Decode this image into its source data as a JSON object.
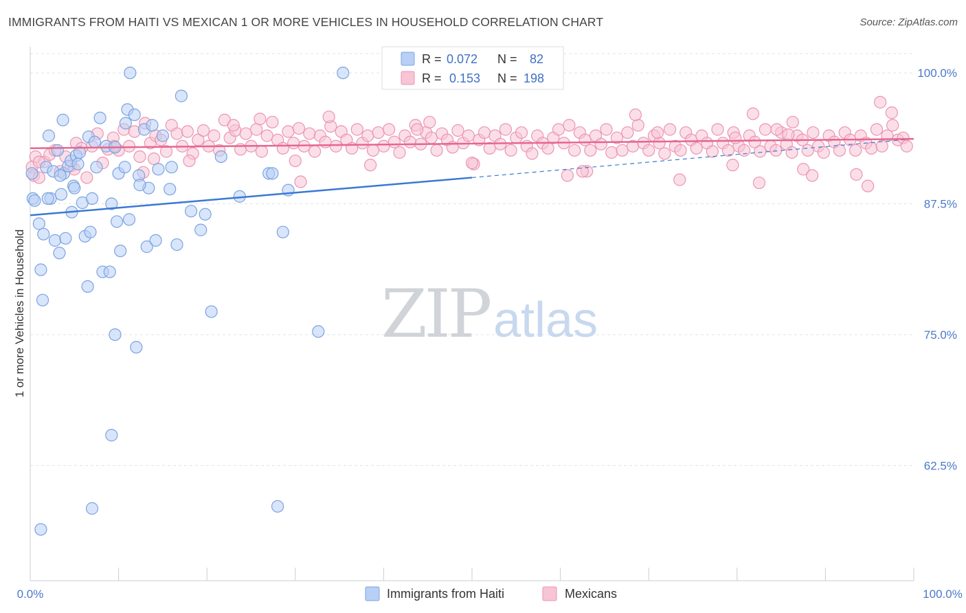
{
  "title": "IMMIGRANTS FROM HAITI VS MEXICAN 1 OR MORE VEHICLES IN HOUSEHOLD CORRELATION CHART",
  "source": "Source: ZipAtlas.com",
  "watermark": {
    "zip": "ZIP",
    "atlas": "atlas"
  },
  "colors": {
    "haiti_fill": "#b8d0f5",
    "haiti_stroke": "#7ba3e0",
    "haiti_line": "#3a78d4",
    "mexican_fill": "#f7c5d5",
    "mexican_stroke": "#ec94b0",
    "mexican_line": "#e6668e",
    "tick_text": "#4a78c8"
  },
  "legend": {
    "r_label": "R =",
    "n_label": "N =",
    "haiti": {
      "r": "0.072",
      "n": "82"
    },
    "mexican": {
      "r": "0.153",
      "n": "198"
    }
  },
  "chart_data": {
    "type": "scatter",
    "xlabel": "",
    "ylabel": "1 or more Vehicles in Household",
    "xlim": [
      0,
      100
    ],
    "ylim": [
      51.5,
      102.5
    ],
    "x_tick_labels": [
      "0.0%",
      "100.0%"
    ],
    "y_ticks": [
      100,
      87.5,
      75,
      62.5
    ],
    "y_tick_labels": [
      "100.0%",
      "87.5%",
      "75.0%",
      "62.5%"
    ],
    "grid": true,
    "legend_position": "top-center",
    "series": [
      {
        "name": "Immigrants from Haiti",
        "trend": {
          "x0": 0,
          "y0": 86.4,
          "x1": 50,
          "y1": 90.0,
          "dashed_to_x": 100,
          "dashed_to_y": 93.7
        },
        "points": [
          [
            0.2,
            90.4
          ],
          [
            0.3,
            88.0
          ],
          [
            0.5,
            87.8
          ],
          [
            1.0,
            85.6
          ],
          [
            1.2,
            81.2
          ],
          [
            1.5,
            84.6
          ],
          [
            1.8,
            91.0
          ],
          [
            2.1,
            94.0
          ],
          [
            2.3,
            88.0
          ],
          [
            2.6,
            90.6
          ],
          [
            2.8,
            84.0
          ],
          [
            3.1,
            92.6
          ],
          [
            3.3,
            82.8
          ],
          [
            3.5,
            88.4
          ],
          [
            3.8,
            90.4
          ],
          [
            4.0,
            84.2
          ],
          [
            4.3,
            91.1
          ],
          [
            4.6,
            91.6
          ],
          [
            4.9,
            89.2
          ],
          [
            5.2,
            92.1
          ],
          [
            5.4,
            91.3
          ],
          [
            5.9,
            87.6
          ],
          [
            6.2,
            84.4
          ],
          [
            6.6,
            93.9
          ],
          [
            7.0,
            88.0
          ],
          [
            7.5,
            91.0
          ],
          [
            7.9,
            95.7
          ],
          [
            8.6,
            93.0
          ],
          [
            9.2,
            87.5
          ],
          [
            9.6,
            92.9
          ],
          [
            10.0,
            90.4
          ],
          [
            10.7,
            91.0
          ],
          [
            11.0,
            96.5
          ],
          [
            11.3,
            100.0
          ],
          [
            11.8,
            96.0
          ],
          [
            12.3,
            90.2
          ],
          [
            12.9,
            94.6
          ],
          [
            13.4,
            89.0
          ],
          [
            13.8,
            95.0
          ],
          [
            14.5,
            90.8
          ],
          [
            15.0,
            94.0
          ],
          [
            16.0,
            91.0
          ],
          [
            16.6,
            83.6
          ],
          [
            17.1,
            97.8
          ],
          [
            18.2,
            86.8
          ],
          [
            19.3,
            85.0
          ],
          [
            19.8,
            86.5
          ],
          [
            20.5,
            77.2
          ],
          [
            21.6,
            92.0
          ],
          [
            23.7,
            88.2
          ],
          [
            27.0,
            90.4
          ],
          [
            27.4,
            90.4
          ],
          [
            28.0,
            58.6
          ],
          [
            28.6,
            84.8
          ],
          [
            29.2,
            88.8
          ],
          [
            32.6,
            75.3
          ],
          [
            35.4,
            100.0
          ],
          [
            10.8,
            95.2
          ],
          [
            7.3,
            93.4
          ],
          [
            3.7,
            95.5
          ],
          [
            5.0,
            89.0
          ],
          [
            8.2,
            81.0
          ],
          [
            9.0,
            81.0
          ],
          [
            6.5,
            79.6
          ],
          [
            1.4,
            78.3
          ],
          [
            9.6,
            75.0
          ],
          [
            12.0,
            73.8
          ],
          [
            9.2,
            65.4
          ],
          [
            7.0,
            58.4
          ],
          [
            1.2,
            56.4
          ],
          [
            12.4,
            89.3
          ],
          [
            13.2,
            83.4
          ],
          [
            14.2,
            84.0
          ],
          [
            9.8,
            85.8
          ],
          [
            11.2,
            86.0
          ],
          [
            10.2,
            83.0
          ],
          [
            4.7,
            86.7
          ],
          [
            3.4,
            90.2
          ],
          [
            2.0,
            88.0
          ],
          [
            5.6,
            92.4
          ],
          [
            15.8,
            88.9
          ],
          [
            6.8,
            84.8
          ]
        ]
      },
      {
        "name": "Mexicans",
        "trend": {
          "x0": 0,
          "y0": 92.8,
          "x1": 100,
          "y1": 93.7
        },
        "points": [
          [
            0.2,
            91.0
          ],
          [
            0.4,
            90.2
          ],
          [
            0.6,
            92.0
          ],
          [
            1.0,
            90.0
          ],
          [
            1.6,
            91.5
          ],
          [
            2.2,
            92.2
          ],
          [
            2.8,
            92.6
          ],
          [
            3.4,
            90.6
          ],
          [
            4.0,
            92.0
          ],
          [
            4.6,
            91.1
          ],
          [
            5.2,
            93.3
          ],
          [
            5.8,
            92.8
          ],
          [
            6.4,
            90.0
          ],
          [
            7.0,
            93.0
          ],
          [
            7.6,
            94.2
          ],
          [
            8.2,
            91.4
          ],
          [
            8.8,
            92.7
          ],
          [
            9.4,
            93.8
          ],
          [
            10.0,
            92.6
          ],
          [
            10.6,
            94.6
          ],
          [
            11.2,
            93.0
          ],
          [
            11.8,
            94.4
          ],
          [
            12.4,
            92.0
          ],
          [
            13.0,
            95.2
          ],
          [
            13.6,
            93.3
          ],
          [
            14.2,
            94.0
          ],
          [
            14.8,
            93.6
          ],
          [
            15.4,
            92.5
          ],
          [
            16.0,
            95.0
          ],
          [
            16.6,
            94.2
          ],
          [
            17.2,
            93.0
          ],
          [
            17.8,
            94.4
          ],
          [
            18.4,
            92.3
          ],
          [
            19.0,
            93.6
          ],
          [
            19.6,
            94.5
          ],
          [
            20.2,
            93.0
          ],
          [
            20.8,
            94.0
          ],
          [
            21.4,
            92.6
          ],
          [
            22.0,
            95.5
          ],
          [
            22.6,
            93.8
          ],
          [
            23.2,
            94.5
          ],
          [
            23.8,
            92.7
          ],
          [
            24.4,
            94.2
          ],
          [
            25.0,
            93.0
          ],
          [
            25.6,
            94.6
          ],
          [
            26.2,
            92.5
          ],
          [
            26.8,
            94.0
          ],
          [
            27.4,
            95.3
          ],
          [
            28.0,
            93.6
          ],
          [
            28.6,
            92.8
          ],
          [
            29.2,
            94.4
          ],
          [
            29.8,
            93.3
          ],
          [
            30.4,
            94.7
          ],
          [
            31.0,
            93.0
          ],
          [
            31.6,
            94.2
          ],
          [
            32.2,
            92.5
          ],
          [
            32.8,
            94.0
          ],
          [
            33.4,
            93.4
          ],
          [
            34.0,
            94.9
          ],
          [
            34.6,
            93.0
          ],
          [
            35.2,
            94.4
          ],
          [
            35.8,
            93.6
          ],
          [
            36.4,
            92.8
          ],
          [
            37.0,
            94.6
          ],
          [
            37.6,
            93.3
          ],
          [
            38.2,
            94.0
          ],
          [
            38.8,
            92.6
          ],
          [
            39.4,
            94.3
          ],
          [
            40.0,
            93.0
          ],
          [
            40.6,
            94.6
          ],
          [
            41.2,
            93.4
          ],
          [
            41.8,
            92.4
          ],
          [
            42.4,
            94.0
          ],
          [
            43.0,
            93.4
          ],
          [
            43.6,
            95.0
          ],
          [
            44.2,
            93.2
          ],
          [
            44.8,
            94.3
          ],
          [
            45.4,
            93.8
          ],
          [
            46.0,
            92.6
          ],
          [
            46.6,
            94.2
          ],
          [
            47.2,
            93.6
          ],
          [
            47.8,
            92.9
          ],
          [
            48.4,
            94.5
          ],
          [
            49.0,
            93.3
          ],
          [
            49.6,
            94.0
          ],
          [
            50.2,
            91.3
          ],
          [
            50.8,
            93.6
          ],
          [
            51.4,
            94.3
          ],
          [
            52.0,
            92.8
          ],
          [
            52.6,
            94.0
          ],
          [
            53.2,
            93.2
          ],
          [
            53.8,
            94.6
          ],
          [
            54.4,
            92.6
          ],
          [
            55.0,
            93.8
          ],
          [
            55.6,
            94.3
          ],
          [
            56.2,
            93.0
          ],
          [
            56.8,
            92.3
          ],
          [
            57.4,
            94.0
          ],
          [
            58.0,
            93.3
          ],
          [
            58.6,
            92.8
          ],
          [
            59.2,
            93.8
          ],
          [
            59.8,
            94.6
          ],
          [
            60.4,
            93.3
          ],
          [
            61.0,
            95.0
          ],
          [
            61.6,
            92.6
          ],
          [
            62.2,
            94.3
          ],
          [
            62.8,
            93.6
          ],
          [
            63.4,
            92.6
          ],
          [
            64.0,
            94.0
          ],
          [
            64.6,
            93.2
          ],
          [
            65.2,
            94.6
          ],
          [
            65.8,
            92.4
          ],
          [
            66.4,
            93.8
          ],
          [
            67.0,
            92.6
          ],
          [
            67.6,
            94.3
          ],
          [
            68.2,
            93.0
          ],
          [
            68.8,
            95.0
          ],
          [
            69.4,
            93.3
          ],
          [
            70.0,
            92.6
          ],
          [
            70.6,
            94.0
          ],
          [
            71.2,
            93.3
          ],
          [
            71.8,
            92.3
          ],
          [
            72.4,
            94.6
          ],
          [
            73.0,
            93.0
          ],
          [
            73.6,
            92.6
          ],
          [
            74.2,
            94.3
          ],
          [
            74.8,
            93.6
          ],
          [
            75.4,
            92.8
          ],
          [
            76.0,
            94.0
          ],
          [
            76.6,
            93.3
          ],
          [
            77.2,
            92.5
          ],
          [
            77.8,
            94.6
          ],
          [
            78.4,
            93.3
          ],
          [
            79.0,
            92.6
          ],
          [
            79.6,
            94.3
          ],
          [
            80.2,
            93.0
          ],
          [
            80.8,
            92.6
          ],
          [
            81.4,
            94.0
          ],
          [
            82.0,
            93.4
          ],
          [
            82.6,
            92.5
          ],
          [
            83.2,
            94.6
          ],
          [
            83.8,
            93.0
          ],
          [
            84.4,
            92.6
          ],
          [
            85.0,
            94.3
          ],
          [
            85.6,
            93.2
          ],
          [
            86.2,
            92.4
          ],
          [
            86.8,
            94.0
          ],
          [
            87.4,
            93.6
          ],
          [
            88.0,
            92.6
          ],
          [
            88.6,
            94.3
          ],
          [
            89.2,
            93.0
          ],
          [
            89.8,
            92.4
          ],
          [
            90.4,
            94.0
          ],
          [
            91.0,
            93.4
          ],
          [
            91.6,
            92.6
          ],
          [
            92.2,
            94.3
          ],
          [
            92.8,
            93.6
          ],
          [
            93.4,
            92.6
          ],
          [
            94.0,
            94.0
          ],
          [
            94.6,
            93.3
          ],
          [
            95.2,
            92.8
          ],
          [
            95.8,
            94.6
          ],
          [
            96.4,
            93.0
          ],
          [
            97.0,
            94.0
          ],
          [
            97.6,
            95.0
          ],
          [
            98.2,
            93.6
          ],
          [
            98.8,
            93.8
          ],
          [
            99.2,
            93.0
          ],
          [
            1.0,
            91.5
          ],
          [
            5.0,
            90.8
          ],
          [
            9.5,
            93.0
          ],
          [
            14.0,
            91.8
          ],
          [
            18.0,
            91.6
          ],
          [
            30.0,
            91.6
          ],
          [
            30.6,
            89.6
          ],
          [
            38.5,
            91.2
          ],
          [
            50.0,
            91.4
          ],
          [
            63.0,
            90.6
          ],
          [
            73.5,
            89.8
          ],
          [
            79.5,
            91.2
          ],
          [
            82.5,
            89.5
          ],
          [
            87.5,
            90.8
          ],
          [
            88.5,
            90.2
          ],
          [
            93.5,
            90.3
          ],
          [
            94.8,
            89.2
          ],
          [
            96.2,
            97.2
          ],
          [
            97.5,
            96.2
          ],
          [
            81.8,
            96.1
          ],
          [
            86.3,
            95.3
          ],
          [
            79.8,
            93.8
          ],
          [
            60.8,
            90.2
          ],
          [
            62.5,
            90.6
          ],
          [
            71.0,
            94.3
          ],
          [
            68.5,
            96.0
          ],
          [
            45.2,
            95.3
          ],
          [
            26.0,
            95.6
          ],
          [
            43.8,
            94.6
          ],
          [
            33.8,
            95.8
          ],
          [
            23.0,
            95.0
          ],
          [
            85.8,
            94.1
          ],
          [
            84.5,
            94.6
          ],
          [
            12.8,
            90.5
          ]
        ]
      }
    ]
  },
  "bottom_legend": [
    {
      "label": "Immigrants from Haiti"
    },
    {
      "label": "Mexicans"
    }
  ]
}
